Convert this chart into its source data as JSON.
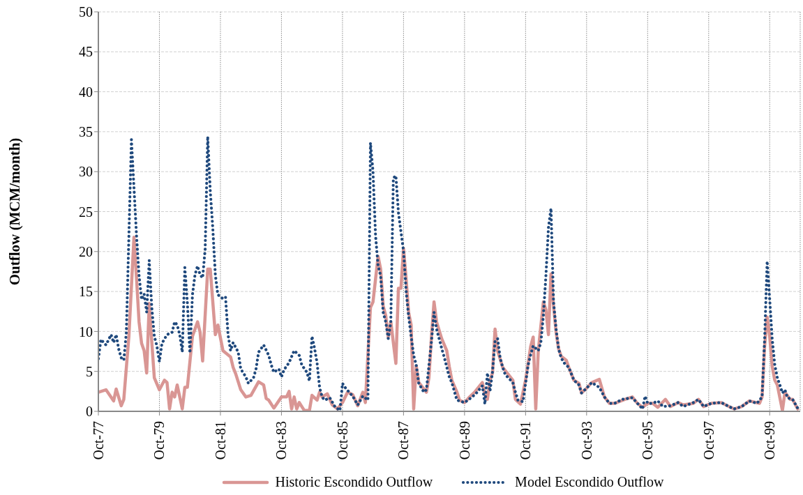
{
  "chart_data": {
    "type": "line",
    "ylabel": "Outflow (MCM/month)",
    "xlim": [
      "1977-10",
      "2000-10"
    ],
    "xticks": [
      {
        "value": "1977-10",
        "label": "Oct-77"
      },
      {
        "value": "1979-10",
        "label": "Oct-79"
      },
      {
        "value": "1981-10",
        "label": "Oct-81"
      },
      {
        "value": "1983-10",
        "label": "Oct-83"
      },
      {
        "value": "1985-10",
        "label": "Oct-85"
      },
      {
        "value": "1987-10",
        "label": "Oct-87"
      },
      {
        "value": "1989-10",
        "label": "Oct-89"
      },
      {
        "value": "1991-10",
        "label": "Oct-91"
      },
      {
        "value": "1993-10",
        "label": "Oct-93"
      },
      {
        "value": "1995-10",
        "label": "Oct-95"
      },
      {
        "value": "1997-10",
        "label": "Oct-97"
      },
      {
        "value": "1999-10",
        "label": "Oct-99"
      }
    ],
    "ylim": [
      0,
      50
    ],
    "yticks": [
      0,
      5,
      10,
      15,
      20,
      25,
      30,
      35,
      40,
      45,
      50
    ],
    "grid": true,
    "legend": "bottom",
    "series": [
      {
        "name": "Historic Escondido Outflow",
        "color": "#d99694",
        "line_style": "solid",
        "x": [
          "1977-10",
          "1978-01",
          "1978-04",
          "1978-05",
          "1978-07",
          "1978-08",
          "1978-10",
          "1978-12",
          "1979-01",
          "1979-02",
          "1979-03",
          "1979-04",
          "1979-05",
          "1979-06",
          "1979-07",
          "1979-08",
          "1979-10",
          "1979-12",
          "1980-01",
          "1980-02",
          "1980-03",
          "1980-04",
          "1980-05",
          "1980-07",
          "1980-08",
          "1980-09",
          "1980-11",
          "1981-01",
          "1981-02",
          "1981-03",
          "1981-05",
          "1981-06",
          "1981-08",
          "1981-09",
          "1981-11",
          "1982-02",
          "1982-03",
          "1982-04",
          "1982-06",
          "1982-08",
          "1982-10",
          "1983-01",
          "1983-03",
          "1983-04",
          "1983-05",
          "1983-07",
          "1983-10",
          "1983-12",
          "1984-01",
          "1984-02",
          "1984-03",
          "1984-04",
          "1984-05",
          "1984-07",
          "1984-09",
          "1984-10",
          "1984-12",
          "1985-01",
          "1985-02",
          "1985-04",
          "1985-06",
          "1985-08",
          "1985-10",
          "1985-12",
          "1986-02",
          "1986-04",
          "1986-06",
          "1986-07",
          "1986-09",
          "1986-10",
          "1986-12",
          "1987-01",
          "1987-02",
          "1987-03",
          "1987-04",
          "1987-05",
          "1987-07",
          "1987-08",
          "1987-09",
          "1987-10",
          "1987-11",
          "1987-12",
          "1988-01",
          "1988-02",
          "1988-03",
          "1988-04",
          "1988-07",
          "1988-08",
          "1988-09",
          "1988-10",
          "1988-11",
          "1989-01",
          "1989-03",
          "1989-04",
          "1989-05",
          "1989-07",
          "1989-08",
          "1989-10",
          "1989-12",
          "1990-02",
          "1990-05",
          "1990-06",
          "1990-07",
          "1990-08",
          "1990-09",
          "1990-10",
          "1990-11",
          "1991-01",
          "1991-03",
          "1991-05",
          "1991-06",
          "1991-08",
          "1991-10",
          "1991-12",
          "1992-01",
          "1992-02",
          "1992-03",
          "1992-05",
          "1992-06",
          "1992-07",
          "1992-08",
          "1992-09",
          "1992-10",
          "1992-11",
          "1992-12",
          "1993-02",
          "1993-03",
          "1993-05",
          "1993-07",
          "1993-08",
          "1993-10",
          "1993-12",
          "1994-03",
          "1994-05",
          "1994-07",
          "1994-09",
          "1995-01",
          "1995-04",
          "1995-06",
          "1995-08",
          "1995-10",
          "1995-12",
          "1996-02",
          "1996-05",
          "1996-07",
          "1996-10",
          "1996-12",
          "1997-04",
          "1997-06",
          "1997-08",
          "1997-11",
          "1998-03",
          "1998-06",
          "1998-08",
          "1998-11",
          "1999-02",
          "1999-06",
          "1999-07",
          "1999-08",
          "1999-09",
          "1999-10",
          "1999-11",
          "1999-12",
          "2000-01",
          "2000-03",
          "2000-04",
          "2000-06",
          "2000-07",
          "2000-09"
        ],
        "values": [
          2.4,
          2.7,
          1.3,
          2.8,
          0.7,
          1.5,
          9.4,
          21.8,
          16.7,
          11.2,
          8.5,
          7.6,
          4.8,
          13.5,
          8.7,
          4.2,
          2.7,
          3.9,
          3.6,
          0.3,
          2.4,
          1.8,
          3.3,
          0.3,
          3.0,
          3.0,
          9.4,
          11.2,
          9.9,
          6.3,
          17.8,
          17.8,
          9.6,
          10.8,
          7.6,
          6.8,
          5.5,
          4.7,
          2.7,
          1.8,
          2.0,
          3.7,
          3.3,
          1.6,
          1.4,
          0.4,
          1.8,
          1.8,
          2.5,
          0.3,
          1.8,
          0.3,
          1.1,
          0.1,
          0.1,
          2.0,
          1.4,
          2.4,
          1.8,
          2.2,
          0.8,
          0.3,
          1.1,
          2.4,
          2.1,
          0.7,
          2.4,
          1.1,
          13.0,
          13.7,
          19.4,
          17.8,
          13.2,
          12.0,
          9.3,
          11.2,
          6.0,
          15.4,
          15.4,
          20.4,
          16.7,
          12.4,
          10.8,
          0.3,
          5.7,
          3.6,
          2.4,
          4.2,
          9.4,
          13.7,
          11.2,
          9.1,
          7.6,
          5.6,
          3.9,
          2.4,
          1.4,
          1.1,
          1.8,
          2.4,
          3.6,
          2.1,
          1.5,
          3.9,
          4.8,
          10.3,
          7.6,
          5.5,
          4.7,
          3.9,
          1.5,
          0.9,
          3.9,
          8.1,
          9.3,
          0.3,
          7.6,
          13.7,
          12.7,
          9.6,
          17.2,
          13.2,
          9.9,
          7.8,
          6.9,
          6.4,
          5.5,
          3.9,
          3.5,
          2.3,
          2.9,
          3.6,
          4.0,
          1.8,
          1.0,
          1.0,
          1.5,
          1.8,
          1.0,
          0.5,
          1.0,
          1.0,
          0.5,
          1.5,
          0.6,
          1.1,
          0.8,
          1.0,
          1.5,
          0.6,
          1.0,
          1.1,
          0.6,
          0.3,
          0.6,
          1.3,
          1.0,
          1.8,
          8.1,
          11.8,
          9.4,
          5.6,
          3.9,
          3.3,
          0.1,
          2.4,
          1.5,
          1.5,
          0.3
        ]
      },
      {
        "name": "Model Escondido Outflow",
        "color": "#1f497d",
        "line_style": "dotted",
        "x": [
          "1977-10",
          "1977-11",
          "1978-01",
          "1978-03",
          "1978-04",
          "1978-05",
          "1978-06",
          "1978-07",
          "1978-08",
          "1978-09",
          "1978-11",
          "1978-12",
          "1979-01",
          "1979-02",
          "1979-03",
          "1979-04",
          "1979-05",
          "1979-06",
          "1979-07",
          "1979-08",
          "1979-09",
          "1979-10",
          "1979-11",
          "1980-01",
          "1980-03",
          "1980-04",
          "1980-05",
          "1980-06",
          "1980-07",
          "1980-08",
          "1980-09",
          "1980-10",
          "1980-11",
          "1980-12",
          "1981-01",
          "1981-02",
          "1981-03",
          "1981-04",
          "1981-05",
          "1981-06",
          "1981-07",
          "1981-08",
          "1981-09",
          "1981-11",
          "1981-12",
          "1982-01",
          "1982-02",
          "1982-03",
          "1982-05",
          "1982-06",
          "1982-08",
          "1982-09",
          "1982-11",
          "1982-12",
          "1983-01",
          "1983-03",
          "1983-05",
          "1983-06",
          "1983-07",
          "1983-09",
          "1983-10",
          "1983-11",
          "1984-01",
          "1984-03",
          "1984-05",
          "1984-06",
          "1984-08",
          "1984-09",
          "1984-10",
          "1984-11",
          "1984-12",
          "1985-01",
          "1985-02",
          "1985-03",
          "1985-05",
          "1985-07",
          "1985-09",
          "1985-10",
          "1985-11",
          "1986-02",
          "1986-04",
          "1986-06",
          "1986-08",
          "1986-09",
          "1986-10",
          "1986-11",
          "1986-12",
          "1987-01",
          "1987-02",
          "1987-03",
          "1987-04",
          "1987-05",
          "1987-06",
          "1987-07",
          "1987-08",
          "1987-09",
          "1987-10",
          "1987-11",
          "1987-12",
          "1988-01",
          "1988-02",
          "1988-03",
          "1988-04",
          "1988-06",
          "1988-07",
          "1988-09",
          "1988-10",
          "1988-11",
          "1989-01",
          "1989-02",
          "1989-04",
          "1989-05",
          "1989-07",
          "1989-10",
          "1990-01",
          "1990-03",
          "1990-05",
          "1990-06",
          "1990-07",
          "1990-08",
          "1990-09",
          "1990-10",
          "1990-11",
          "1990-12",
          "1991-01",
          "1991-02",
          "1991-05",
          "1991-06",
          "1991-07",
          "1991-09",
          "1991-10",
          "1991-11",
          "1991-12",
          "1992-01",
          "1992-03",
          "1992-04",
          "1992-05",
          "1992-06",
          "1992-07",
          "1992-08",
          "1992-09",
          "1992-10",
          "1992-11",
          "1992-12",
          "1993-01",
          "1993-03",
          "1993-05",
          "1993-07",
          "1993-08",
          "1993-10",
          "1993-12",
          "1994-03",
          "1994-05",
          "1994-07",
          "1994-09",
          "1994-12",
          "1995-04",
          "1995-06",
          "1995-08",
          "1995-09",
          "1995-10",
          "1995-12",
          "1996-02",
          "1996-04",
          "1996-07",
          "1996-10",
          "1996-12",
          "1997-04",
          "1997-06",
          "1997-08",
          "1997-11",
          "1998-03",
          "1998-06",
          "1998-08",
          "1998-11",
          "1999-02",
          "1999-05",
          "1999-07",
          "1999-08",
          "1999-09",
          "1999-10",
          "1999-11",
          "1999-12",
          "2000-01",
          "2000-02",
          "2000-03",
          "2000-04",
          "2000-05",
          "2000-07",
          "2000-09"
        ],
        "values": [
          6.6,
          9.0,
          8.3,
          9.6,
          8.6,
          9.6,
          7.8,
          6.7,
          6.4,
          9.9,
          34.0,
          28.0,
          22.0,
          17.0,
          14.0,
          14.7,
          12.4,
          18.9,
          13.0,
          9.4,
          8.2,
          6.2,
          8.5,
          9.6,
          9.9,
          11.2,
          10.8,
          9.6,
          7.4,
          18.0,
          13.6,
          7.3,
          14.6,
          17.1,
          18.2,
          17.1,
          16.7,
          20.3,
          34.4,
          27.6,
          22.9,
          17.1,
          14.6,
          14.1,
          14.3,
          9.6,
          7.6,
          8.6,
          7.4,
          5.3,
          4.3,
          3.5,
          4.2,
          5.3,
          7.4,
          8.3,
          7.0,
          5.8,
          4.9,
          5.3,
          4.3,
          5.2,
          6.1,
          7.6,
          7.0,
          5.8,
          4.9,
          3.8,
          9.4,
          7.9,
          6.1,
          3.0,
          1.8,
          1.4,
          1.7,
          0.6,
          0.1,
          3.5,
          3.0,
          1.9,
          0.8,
          1.9,
          1.4,
          33.6,
          30.0,
          22.0,
          18.2,
          17.0,
          12.4,
          11.2,
          9.1,
          11.2,
          29.2,
          29.5,
          24.9,
          22.5,
          20.1,
          15.2,
          11.9,
          9.4,
          7.0,
          5.8,
          3.5,
          2.4,
          2.7,
          8.8,
          12.4,
          10.3,
          7.9,
          6.8,
          4.3,
          3.6,
          1.4,
          1.1,
          1.8,
          2.4,
          3.2,
          0.9,
          4.8,
          2.5,
          5.0,
          8.8,
          9.1,
          6.7,
          5.5,
          4.6,
          3.6,
          2.4,
          1.4,
          1.2,
          3.5,
          5.8,
          7.1,
          8.2,
          7.6,
          8.6,
          12.0,
          17.0,
          23.0,
          25.4,
          13.7,
          10.3,
          7.8,
          6.7,
          6.1,
          5.5,
          3.9,
          3.3,
          2.3,
          2.9,
          3.6,
          3.0,
          1.8,
          1.0,
          1.0,
          1.5,
          1.7,
          1.0,
          0.3,
          1.9,
          1.0,
          1.0,
          1.3,
          0.6,
          0.7,
          1.1,
          0.6,
          1.1,
          1.5,
          0.6,
          1.0,
          1.1,
          0.6,
          0.3,
          0.6,
          1.3,
          1.0,
          1.8,
          9.0,
          18.8,
          14.0,
          9.0,
          5.8,
          4.2,
          3.3,
          2.3,
          2.7,
          1.7,
          1.5,
          0.4
        ]
      }
    ]
  }
}
